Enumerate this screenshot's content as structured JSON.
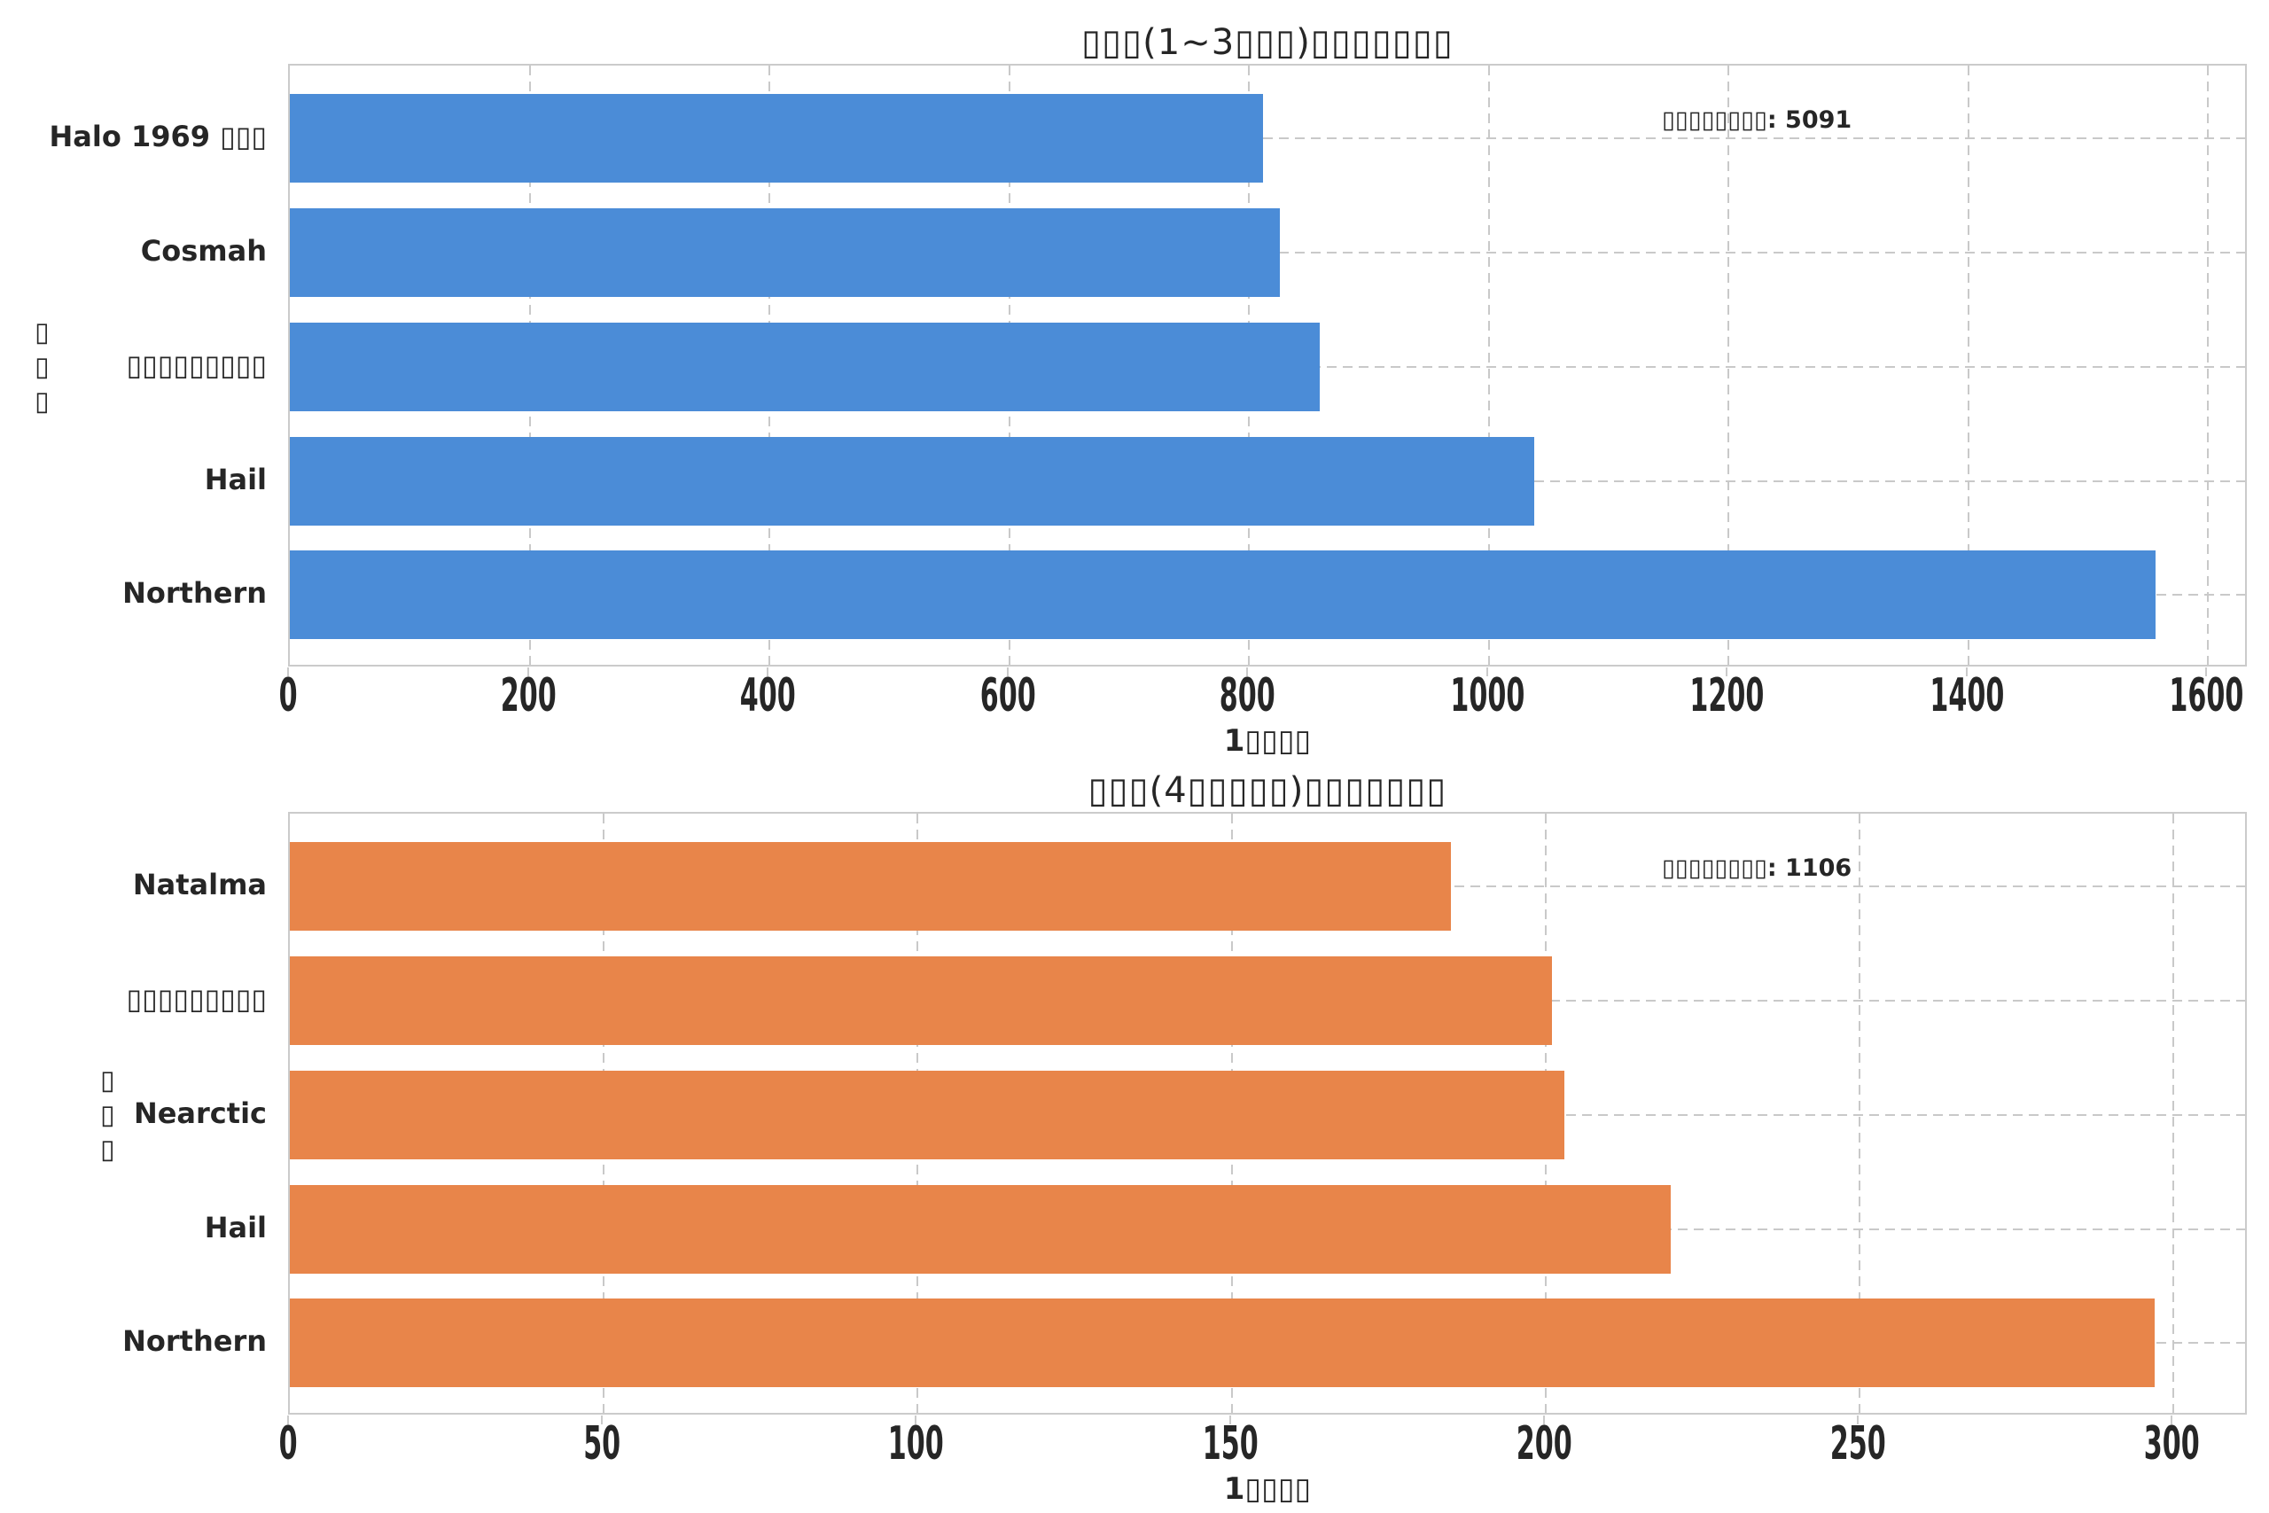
{
  "figure": {
    "background": "#ffffff",
    "grid_color": "#c9c9c9",
    "frame_color": "#cbcbcb",
    "text_color": "#262626"
  },
  "chart_data": [
    {
      "type": "bar",
      "orientation": "horizontal",
      "title": "▯▯▯(1~3▯▯▯)▯▯▯▯▯▯▯",
      "xlabel": "1▯▯▯▯",
      "ylabel": "▯▯▯",
      "annotation": "▯▯▯▯▯▯▯▯: 5091",
      "annotation_total": 5091,
      "bar_color": "#4B8CD7",
      "categories": [
        "Halo 1969 ▯▯▯",
        "Cosmah",
        "▯▯▯▯▯▯▯▯▯",
        "Hail",
        "Northern"
      ],
      "values": [
        812,
        826,
        859,
        1038,
        1556
      ],
      "xticks": [
        0,
        200,
        400,
        600,
        800,
        1000,
        1200,
        1400,
        1600
      ],
      "xlim": [
        0,
        1634
      ],
      "grid": "dashed",
      "legend": "none"
    },
    {
      "type": "bar",
      "orientation": "horizontal",
      "title": "▯▯▯(4▯▯▯▯▯)▯▯▯▯▯▯▯",
      "xlabel": "1▯▯▯▯",
      "ylabel": "▯▯▯",
      "annotation": "▯▯▯▯▯▯▯▯: 1106",
      "annotation_total": 1106,
      "bar_color": "#E8854A",
      "categories": [
        "Natalma",
        "▯▯▯▯▯▯▯▯▯",
        "Nearctic",
        "Hail",
        "Northern"
      ],
      "values": [
        185,
        201,
        203,
        220,
        297
      ],
      "xticks": [
        0,
        50,
        100,
        150,
        200,
        250,
        300
      ],
      "xlim": [
        0,
        312
      ],
      "grid": "dashed",
      "legend": "none"
    }
  ]
}
